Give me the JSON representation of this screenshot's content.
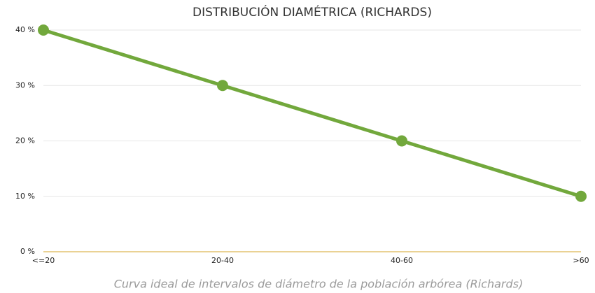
{
  "chart_data": {
    "type": "line",
    "title": "DISTRIBUCIÓN DIAMÉTRICA (RICHARDS)",
    "categories": [
      "<=20",
      "20-40",
      "40-60",
      ">60"
    ],
    "series": [
      {
        "name": "Richards",
        "color": "#72a83c",
        "values": [
          40,
          30,
          20,
          10
        ]
      }
    ],
    "ylim": [
      0,
      40
    ],
    "yticks": [
      {
        "value": 0,
        "label": "0 %"
      },
      {
        "value": 10,
        "label": "10 %"
      },
      {
        "value": 20,
        "label": "20 %"
      },
      {
        "value": 30,
        "label": "30 %"
      },
      {
        "value": 40,
        "label": "40 %"
      }
    ],
    "grid": true,
    "axis_color": "#d4a52a",
    "caption": "Curva ideal de intervalos de diámetro de la población arbórea (Richards)"
  }
}
